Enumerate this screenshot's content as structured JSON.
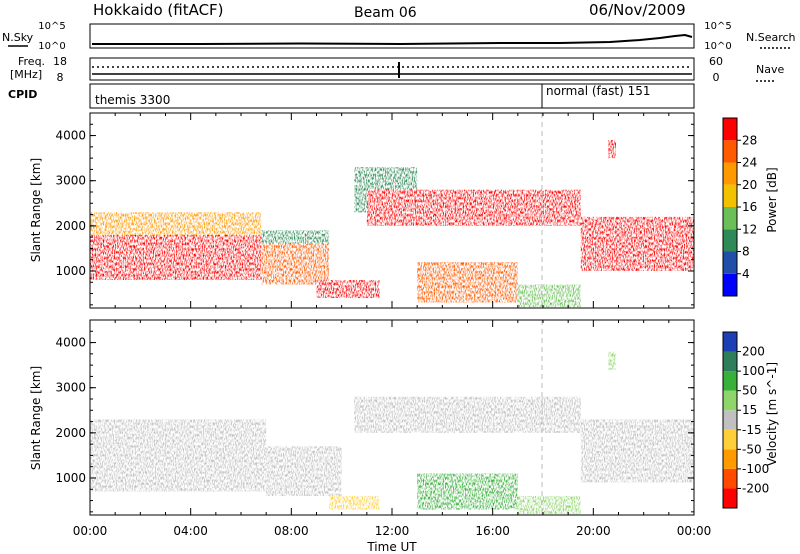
{
  "header": {
    "title": "Hokkaido (fitACF)",
    "beam": "Beam 06",
    "date": "06/Nov/2009"
  },
  "strip_labels": {
    "nsky": "N.Sky",
    "nsearch": "N.Search",
    "freq": "Freq.",
    "freq_unit": "[MHz]",
    "nave": "Nave",
    "cpid": "CPID",
    "ticks_left_top": [
      "10^5",
      "10^0"
    ],
    "ticks_right_top": [
      "10^5",
      "10^0"
    ],
    "ticks_left_freq": [
      "18",
      "8"
    ],
    "ticks_right_freq": [
      "60",
      "0"
    ]
  },
  "cpid_modes": [
    "themis 3300",
    "normal (fast) 151"
  ],
  "x_axis": {
    "label": "Time UT",
    "ticks": [
      "00:00",
      "04:00",
      "08:00",
      "12:00",
      "16:00",
      "20:00",
      "00:00"
    ]
  },
  "y_axis": {
    "label": "Slant Range [km]",
    "ticks": [
      "1000",
      "2000",
      "3000",
      "4000"
    ]
  },
  "colorbar_power": {
    "label": "Power [dB]",
    "ticks": [
      "4",
      "8",
      "12",
      "16",
      "20",
      "24",
      "28"
    ],
    "colors": [
      "#0000ff",
      "#1f4fa8",
      "#2e8b57",
      "#6bbf59",
      "#f2c200",
      "#ff9900",
      "#ff5a00",
      "#ff0000"
    ]
  },
  "colorbar_velocity": {
    "label": "Velocity [m s^-1]",
    "ticks": [
      "200",
      "100",
      "50",
      "15",
      "-15",
      "-50",
      "-100",
      "-200"
    ],
    "colors": [
      "#1d3fb5",
      "#2e7d5b",
      "#38b03a",
      "#8fd66a",
      "#c0c0c0",
      "#ffcf3a",
      "#ff9a00",
      "#ff4a00",
      "#ff0000"
    ]
  },
  "chart_data": [
    {
      "type": "heatmap",
      "title": "Power",
      "xlabel": "Time UT",
      "ylabel": "Slant Range [km]",
      "xlim": [
        0,
        24
      ],
      "ylim": [
        180,
        4500
      ],
      "colorbar": {
        "label": "Power [dB]",
        "range": [
          0,
          30
        ]
      },
      "regions": [
        {
          "t": [
            0.0,
            6.8
          ],
          "r": [
            800,
            1800
          ],
          "power": 28
        },
        {
          "t": [
            0.0,
            6.8
          ],
          "r": [
            1800,
            2300
          ],
          "power": 20
        },
        {
          "t": [
            6.8,
            9.5
          ],
          "r": [
            700,
            1600
          ],
          "power": 24
        },
        {
          "t": [
            6.8,
            9.5
          ],
          "r": [
            1600,
            1900
          ],
          "power": 10
        },
        {
          "t": [
            9.0,
            11.5
          ],
          "r": [
            400,
            800
          ],
          "power": 28
        },
        {
          "t": [
            10.5,
            13.0
          ],
          "r": [
            2300,
            3300
          ],
          "power": 10
        },
        {
          "t": [
            11.0,
            19.5
          ],
          "r": [
            2000,
            2800
          ],
          "power": 28
        },
        {
          "t": [
            13.0,
            17.0
          ],
          "r": [
            300,
            1200
          ],
          "power": 26
        },
        {
          "t": [
            17.0,
            19.5
          ],
          "r": [
            200,
            700
          ],
          "power": 12
        },
        {
          "t": [
            19.5,
            24.0
          ],
          "r": [
            1000,
            2200
          ],
          "power": 28
        },
        {
          "t": [
            20.6,
            20.9
          ],
          "r": [
            3500,
            3900
          ],
          "power": 28
        }
      ]
    },
    {
      "type": "heatmap",
      "title": "Velocity",
      "xlabel": "Time UT",
      "ylabel": "Slant Range [km]",
      "xlim": [
        0,
        24
      ],
      "ylim": [
        180,
        4500
      ],
      "colorbar": {
        "label": "Velocity [m s^-1]",
        "range": [
          -200,
          200
        ]
      },
      "regions": [
        {
          "t": [
            0.0,
            7.0
          ],
          "r": [
            700,
            2300
          ],
          "velocity": 0
        },
        {
          "t": [
            7.0,
            10.0
          ],
          "r": [
            600,
            1700
          ],
          "velocity": 0
        },
        {
          "t": [
            9.5,
            11.5
          ],
          "r": [
            300,
            600
          ],
          "velocity": -40
        },
        {
          "t": [
            10.5,
            19.5
          ],
          "r": [
            2000,
            2800
          ],
          "velocity": 0
        },
        {
          "t": [
            13.0,
            17.0
          ],
          "r": [
            300,
            1100
          ],
          "velocity": 60
        },
        {
          "t": [
            17.0,
            19.5
          ],
          "r": [
            200,
            600
          ],
          "velocity": 30
        },
        {
          "t": [
            19.5,
            24.0
          ],
          "r": [
            900,
            2300
          ],
          "velocity": 0
        },
        {
          "t": [
            20.6,
            20.9
          ],
          "r": [
            3400,
            3800
          ],
          "velocity": 40
        }
      ]
    }
  ]
}
